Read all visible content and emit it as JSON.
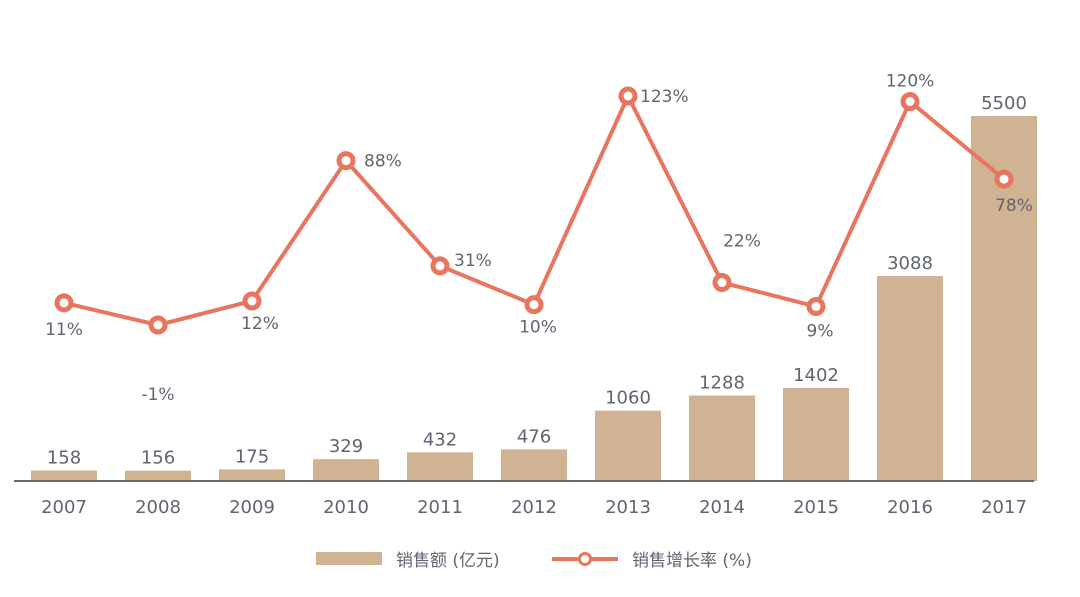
{
  "chart_data": {
    "type": "bar+line",
    "title": "",
    "categories": [
      "2007",
      "2008",
      "2009",
      "2010",
      "2011",
      "2012",
      "2013",
      "2014",
      "2015",
      "2016",
      "2017"
    ],
    "series": [
      {
        "name": "销售额 (亿元)",
        "type": "bar",
        "color": "#d0b392",
        "values": [
          158,
          156,
          175,
          329,
          432,
          476,
          1060,
          1288,
          1402,
          3088,
          5500
        ]
      },
      {
        "name": "销售增长率 (%)",
        "type": "line",
        "color": "#e8755e",
        "values": [
          11,
          -1,
          12,
          88,
          31,
          10,
          123,
          22,
          9,
          120,
          78
        ]
      }
    ],
    "value_labels_bar": [
      "158",
      "156",
      "175",
      "329",
      "432",
      "476",
      "1060",
      "1288",
      "1402",
      "3088",
      "5500"
    ],
    "value_labels_line": [
      "11%",
      "-1%",
      "12%",
      "88%",
      "31%",
      "10%",
      "123%",
      "22%",
      "9%",
      "120%",
      "78%"
    ],
    "xlabel": "",
    "ylabel": "",
    "grid": false,
    "legend_position": "bottom"
  },
  "legend": {
    "bar_label": "销售额 (亿元)",
    "line_label": "销售增长率 (%)"
  },
  "colors": {
    "bar": "#d0b392",
    "line": "#e8755e",
    "axis": "#666a70",
    "text": "#5f6570"
  }
}
